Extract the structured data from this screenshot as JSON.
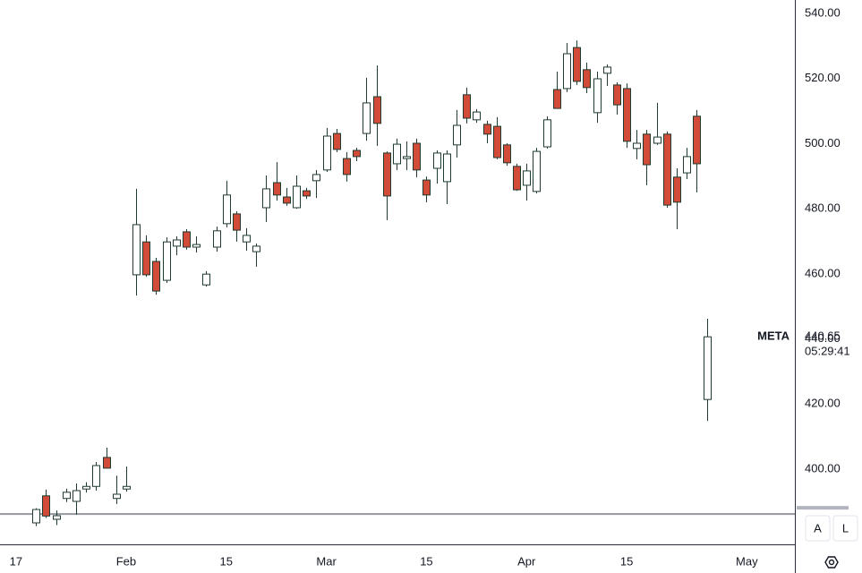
{
  "chart_data": {
    "type": "candlestick",
    "symbol": "META",
    "countdown": "05:29:41",
    "x": [
      0,
      1,
      2,
      3,
      4,
      5,
      6,
      7,
      8,
      9,
      10,
      11,
      12,
      13,
      14,
      15,
      16,
      17,
      18,
      19,
      20,
      21,
      22,
      23,
      24,
      25,
      26,
      27,
      28,
      29,
      30,
      31,
      32,
      33,
      34,
      35,
      36,
      37,
      38,
      39,
      40,
      41,
      42,
      43,
      44,
      45,
      46,
      47,
      48,
      49,
      50,
      51,
      52,
      53,
      54,
      55,
      56,
      57,
      58,
      59,
      60,
      61,
      62,
      63,
      64,
      65,
      66,
      67
    ],
    "open": [
      383.5,
      391.8,
      384.6,
      391.0,
      390.1,
      393.9,
      394.7,
      403.6,
      391.0,
      393.9,
      459.7,
      469.8,
      463.8,
      458.0,
      468.5,
      472.9,
      468.2,
      456.6,
      468.2,
      475.4,
      478.4,
      469.8,
      466.8,
      480.3,
      488.0,
      483.6,
      480.3,
      485.5,
      488.6,
      491.9,
      503.1,
      495.4,
      497.9,
      503.1,
      514.4,
      497.1,
      493.8,
      495.4,
      500.1,
      488.8,
      492.4,
      488.3,
      499.6,
      515.0,
      507.3,
      505.9,
      505.3,
      499.6,
      493.0,
      487.2,
      485.3,
      499.0,
      516.6,
      516.9,
      529.5,
      522.7,
      509.5,
      521.6,
      518.0,
      516.9,
      498.5,
      502.9,
      500.1,
      502.9,
      489.7,
      491.0,
      508.4,
      421.4
    ],
    "high": [
      388.0,
      393.7,
      387.3,
      394.0,
      395.6,
      396.0,
      402.2,
      406.6,
      398.0,
      400.8,
      486.1,
      471.8,
      464.9,
      471.2,
      471.5,
      473.7,
      471.5,
      460.8,
      474.5,
      488.6,
      479.2,
      474.0,
      469.3,
      490.2,
      494.3,
      486.4,
      490.2,
      486.4,
      491.9,
      504.8,
      504.5,
      497.4,
      498.7,
      520.2,
      524.0,
      497.6,
      501.5,
      500.7,
      501.5,
      489.9,
      497.9,
      497.9,
      510.3,
      517.2,
      510.6,
      507.0,
      508.1,
      500.1,
      493.8,
      493.8,
      498.7,
      508.4,
      522.1,
      530.9,
      531.7,
      524.9,
      522.1,
      524.3,
      518.8,
      518.5,
      504.2,
      504.2,
      512.5,
      503.7,
      492.4,
      498.7,
      510.3,
      446.2
    ],
    "low": [
      382.5,
      385.0,
      382.8,
      389.9,
      386.0,
      392.8,
      393.4,
      400.3,
      389.3,
      393.1,
      453.3,
      459.1,
      453.6,
      457.2,
      465.7,
      467.4,
      466.5,
      456.1,
      466.8,
      474.3,
      469.9,
      467.1,
      462.2,
      475.9,
      482.5,
      480.9,
      480.0,
      483.0,
      483.3,
      491.3,
      497.4,
      488.3,
      494.6,
      500.9,
      499.3,
      476.5,
      491.9,
      491.9,
      489.7,
      482.0,
      487.7,
      481.4,
      495.7,
      506.2,
      506.4,
      500.1,
      495.2,
      493.2,
      485.5,
      482.5,
      484.7,
      498.5,
      510.8,
      515.8,
      518.0,
      515.5,
      506.4,
      517.7,
      508.9,
      498.7,
      495.2,
      487.2,
      499.6,
      480.3,
      473.7,
      489.1,
      485.0,
      414.8
    ],
    "close": [
      387.6,
      385.6,
      385.7,
      392.9,
      393.4,
      394.7,
      401.1,
      400.3,
      392.3,
      394.7,
      475.1,
      459.7,
      454.7,
      469.8,
      470.4,
      468.2,
      469.0,
      459.9,
      473.2,
      484.2,
      473.4,
      471.8,
      468.5,
      486.1,
      484.2,
      481.7,
      486.9,
      483.9,
      490.5,
      502.3,
      498.2,
      490.5,
      496.0,
      512.5,
      506.2,
      483.9,
      499.8,
      496.0,
      491.9,
      484.2,
      497.1,
      496.8,
      505.6,
      507.8,
      509.7,
      502.9,
      495.7,
      494.1,
      485.8,
      491.6,
      497.6,
      507.3,
      510.8,
      527.6,
      519.1,
      517.2,
      519.9,
      523.5,
      511.9,
      500.7,
      500.1,
      493.5,
      502.0,
      481.1,
      482.0,
      496.0,
      493.8,
      440.65
    ],
    "up_color": "#ffffff",
    "down_color": "#d24a38",
    "outline_color": "#1f3a30",
    "horizontal_line": 386.2,
    "xlim": [
      -3.6,
      75.8
    ],
    "ylim": [
      376.9,
      544.1
    ],
    "xticks": [
      {
        "value": -2,
        "label": "17"
      },
      {
        "value": 9,
        "label": "Feb"
      },
      {
        "value": 19,
        "label": "15"
      },
      {
        "value": 29,
        "label": "Mar"
      },
      {
        "value": 39,
        "label": "15"
      },
      {
        "value": 49,
        "label": "Apr"
      },
      {
        "value": 59,
        "label": "15"
      },
      {
        "value": 71,
        "label": "May"
      }
    ],
    "yticks": [
      {
        "value": 400,
        "label": "400.00"
      },
      {
        "value": 420,
        "label": "420.00"
      },
      {
        "value": 440,
        "label": "440.00"
      },
      {
        "value": 460,
        "label": "460.00"
      },
      {
        "value": 480,
        "label": "480.00"
      },
      {
        "value": 500,
        "label": "500.00"
      },
      {
        "value": 520,
        "label": "520.00"
      },
      {
        "value": 540,
        "label": "540.00"
      }
    ],
    "buttons": [
      "A",
      "L"
    ]
  }
}
